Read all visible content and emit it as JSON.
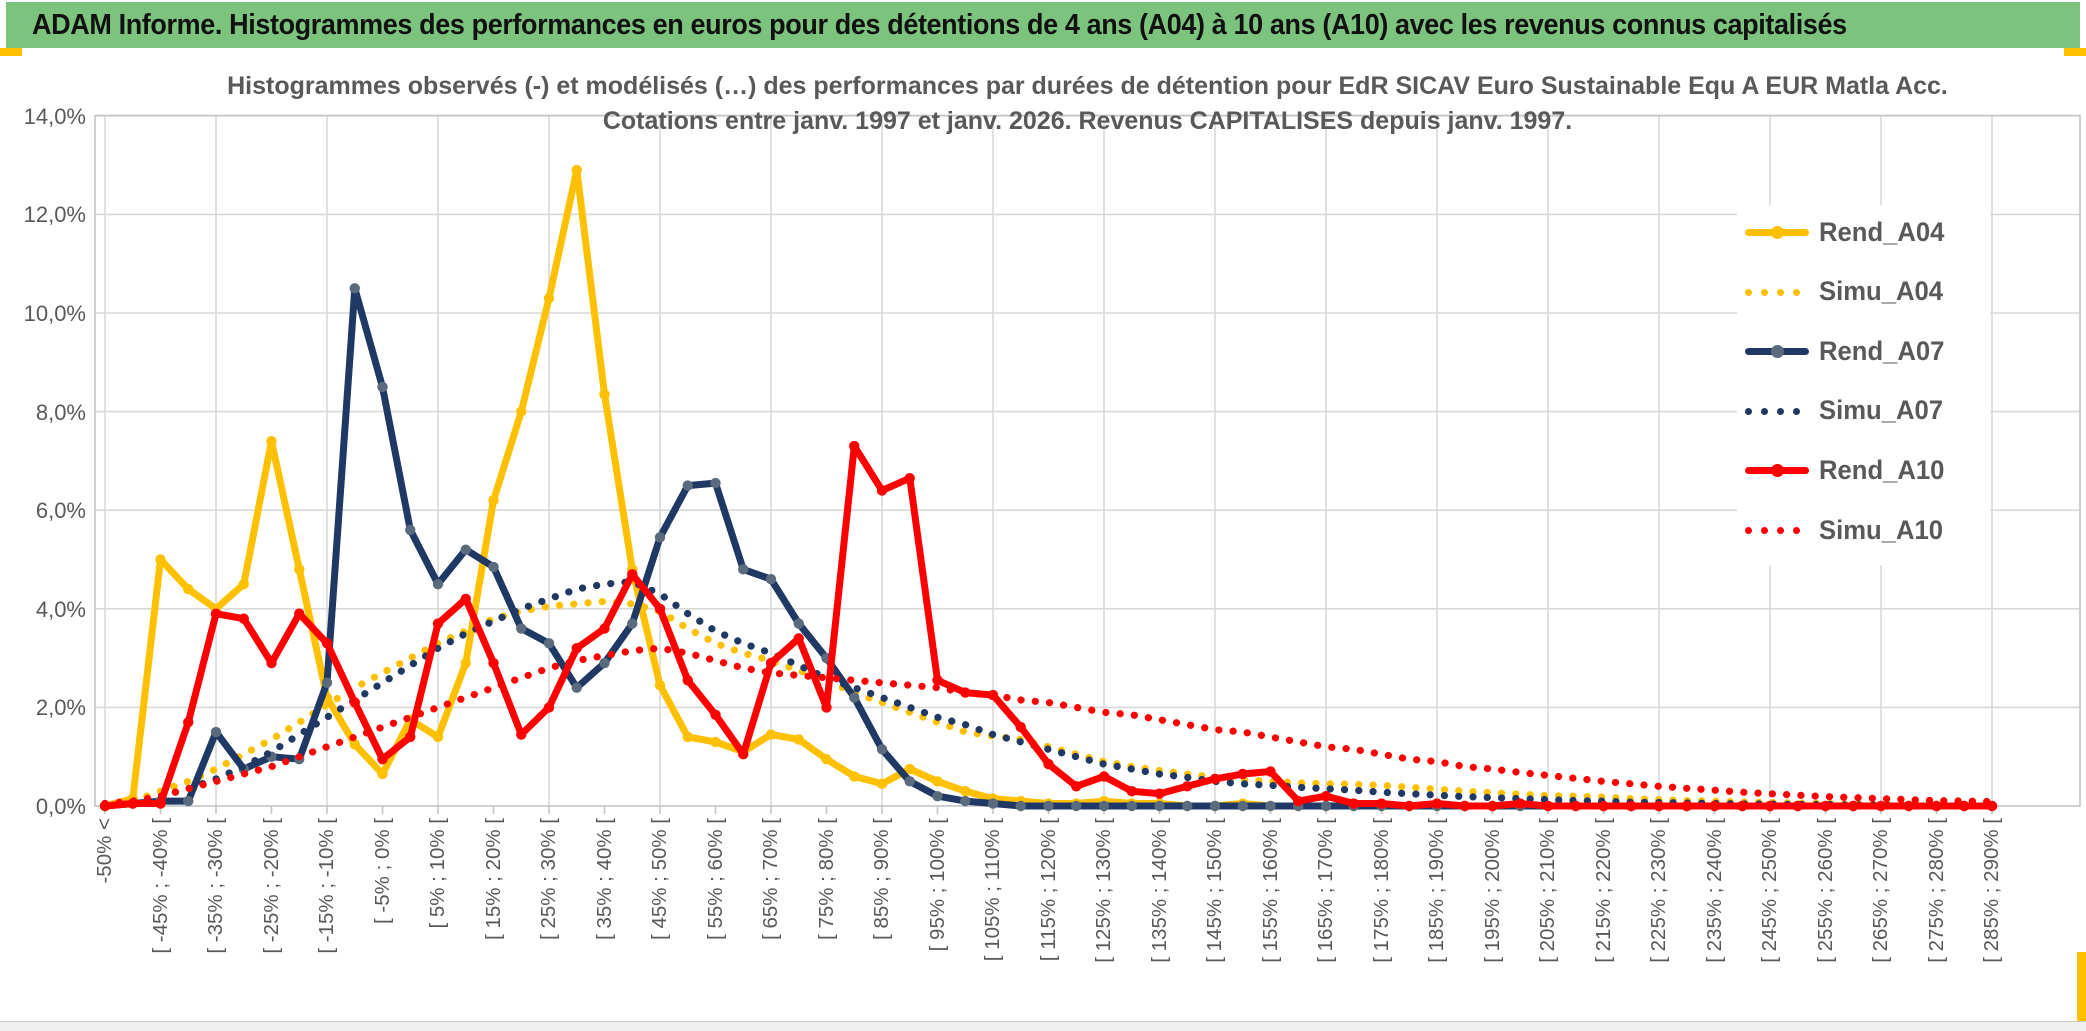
{
  "window": {
    "title": "ADAM Informe. Histogrammes des performances en euros pour des détentions de 4 ans (A04) à 10 ans (A10) avec les revenus connus capitalisés"
  },
  "theme": {
    "header_green": "#7cc47d",
    "accent_gold": "#FFC000",
    "text_gray": "#595959",
    "gridline": "#d9d9d9",
    "plot_border": "#c4c4c4"
  },
  "chart_data": {
    "type": "line",
    "title": "Histogrammes observés (-) et modélisés (…) des performances par durées de détention pour EdR SICAV Euro Sustainable Equ A EUR Matla Acc.",
    "subtitle": "Cotations entre janv. 1997 et janv. 2026. Revenus CAPITALISES depuis janv. 1997.",
    "ylim": [
      0,
      14
    ],
    "y_tick_step": 2,
    "y_tick_labels": [
      "14,0%",
      "12,0%",
      "10,0%",
      "8,0%",
      "6,0%",
      "4,0%",
      "2,0%",
      "0,0%"
    ],
    "n_bins": 69,
    "bin_width_pct": 5,
    "x_tick_every_bins": 2,
    "x_tick_labels": [
      "-50% <",
      "[ -45% ; -40% [",
      "[ -35% ; -30% [",
      "[ -25% ; -20% [",
      "[ -15% ; -10% [",
      "[ -5% ; 0% [",
      "[ 5% ; 10% [",
      "[ 15% ; 20% [",
      "[ 25% ; 30% [",
      "[ 35% ; 40% [",
      "[ 45% ; 50% [",
      "[ 55% ; 60% [",
      "[ 65% ; 70% [",
      "[ 75% ; 80% [",
      "[ 85% ; 90% [",
      "[ 95% ; 100% [",
      "[ 105% ; 110% [",
      "[ 115% ; 120% [",
      "[ 125% ; 130% [",
      "[ 135% ; 140% [",
      "[ 145% ; 150% [",
      "[ 155% ; 160% [",
      "[ 165% ; 170% [",
      "[ 175% ; 180% [",
      "[ 185% ; 190% [",
      "[ 195% ; 200% [",
      "[ 205% ; 210% [",
      "[ 215% ; 220% [",
      "[ 225% ; 230% [",
      "[ 235% ; 240% [",
      "[ 245% ; 250% [",
      "[ 255% ; 260% [",
      "[ 265% ; 270% [",
      "[ 275% ; 280% [",
      "[ 285% ; 290% ["
    ],
    "legend_position": "right",
    "series": [
      {
        "name": "Rend_A04",
        "style": "solid",
        "color": "#FFC000",
        "marker_color": "#FFC000",
        "values": [
          0,
          0.15,
          5,
          4.4,
          4,
          4.5,
          7.4,
          4.8,
          2.2,
          1.25,
          0.65,
          1.75,
          1.4,
          2.9,
          6.2,
          8,
          10.3,
          12.9,
          8.35,
          4.8,
          2.45,
          1.4,
          1.3,
          1.1,
          1.45,
          1.35,
          0.95,
          0.6,
          0.45,
          0.75,
          0.5,
          0.3,
          0.15,
          0.1,
          0.05,
          0.05,
          0.1,
          0.05,
          0.05,
          0,
          0,
          0.05,
          0,
          0,
          0,
          0,
          0,
          0,
          0,
          0,
          0,
          0,
          0,
          0,
          0,
          0,
          0,
          0,
          0,
          0,
          0,
          0,
          0,
          0,
          0,
          0,
          0,
          0,
          0
        ]
      },
      {
        "name": "Simu_A04",
        "style": "dotted",
        "color": "#FFC000",
        "values": [
          0.05,
          0.1,
          0.3,
          0.5,
          0.75,
          1.05,
          1.35,
          1.7,
          2.05,
          2.4,
          2.7,
          3,
          3.3,
          3.55,
          3.8,
          3.95,
          4.05,
          4.1,
          4.15,
          4.1,
          3.95,
          3.6,
          3.3,
          3.1,
          2.95,
          2.75,
          2.55,
          2.3,
          2.1,
          1.9,
          1.7,
          1.5,
          1.42,
          1.35,
          1.2,
          1.05,
          0.9,
          0.8,
          0.72,
          0.65,
          0.58,
          0.53,
          0.5,
          0.47,
          0.45,
          0.44,
          0.42,
          0.38,
          0.34,
          0.3,
          0.27,
          0.24,
          0.21,
          0.2,
          0.18,
          0.15,
          0.13,
          0.11,
          0.1,
          0.08,
          0.07,
          0.06,
          0.05,
          0.04,
          0.03,
          0.03,
          0.02,
          0.02,
          0.02
        ]
      },
      {
        "name": "Rend_A07",
        "style": "solid",
        "color": "#1F3864",
        "marker_color": "#5b6b7e",
        "values": [
          0,
          0.05,
          0.1,
          0.1,
          1.5,
          0.75,
          1,
          0.95,
          2.5,
          10.5,
          8.5,
          5.6,
          4.5,
          5.2,
          4.85,
          3.6,
          3.3,
          2.4,
          2.9,
          3.7,
          5.45,
          6.5,
          6.55,
          4.8,
          4.6,
          3.7,
          3,
          2.2,
          1.15,
          0.5,
          0.2,
          0.1,
          0.05,
          0,
          0,
          0,
          0,
          0,
          0,
          0,
          0,
          0,
          0,
          0,
          0,
          0,
          0,
          0,
          0,
          0,
          0,
          0,
          0,
          0,
          0,
          0,
          0,
          0,
          0,
          0,
          0,
          0,
          0,
          0,
          0,
          0,
          0,
          0,
          0
        ]
      },
      {
        "name": "Simu_A07",
        "style": "dotted",
        "color": "#1F3864",
        "values": [
          0.05,
          0.08,
          0.2,
          0.35,
          0.55,
          0.8,
          1.1,
          1.45,
          1.8,
          2.15,
          2.5,
          2.85,
          3.2,
          3.5,
          3.75,
          4,
          4.2,
          4.4,
          4.5,
          4.55,
          4.3,
          3.9,
          3.55,
          3.3,
          3.1,
          2.85,
          2.6,
          2.4,
          2.2,
          2,
          1.8,
          1.65,
          1.45,
          1.3,
          1.15,
          1,
          0.85,
          0.75,
          0.65,
          0.58,
          0.5,
          0.45,
          0.42,
          0.38,
          0.35,
          0.32,
          0.28,
          0.25,
          0.22,
          0.19,
          0.17,
          0.15,
          0.13,
          0.11,
          0.1,
          0.08,
          0.07,
          0.06,
          0.05,
          0.04,
          0.04,
          0.03,
          0.03,
          0.02,
          0.02,
          0.01,
          0.01,
          0.01,
          0.01
        ]
      },
      {
        "name": "Rend_A10",
        "style": "solid",
        "color": "#FF0000",
        "marker_color": "#FF0000",
        "values": [
          0,
          0.05,
          0.05,
          1.7,
          3.9,
          3.8,
          2.9,
          3.9,
          3.3,
          2.1,
          0.95,
          1.4,
          3.7,
          4.2,
          2.9,
          1.45,
          2,
          3.2,
          3.6,
          4.7,
          4,
          2.55,
          1.85,
          1.05,
          2.9,
          3.4,
          2,
          7.3,
          6.4,
          6.65,
          2.55,
          2.3,
          2.25,
          1.6,
          0.85,
          0.4,
          0.6,
          0.3,
          0.25,
          0.4,
          0.55,
          0.65,
          0.7,
          0.1,
          0.2,
          0.05,
          0.05,
          0,
          0.05,
          0,
          0,
          0.05,
          0,
          0,
          0,
          0,
          0,
          0,
          0,
          0,
          0,
          0,
          0,
          0,
          0,
          0,
          0,
          0,
          0
        ]
      },
      {
        "name": "Simu_A10",
        "style": "dotted",
        "color": "#FF0000",
        "values": [
          0.05,
          0.1,
          0.2,
          0.35,
          0.5,
          0.65,
          0.8,
          1,
          1.2,
          1.4,
          1.6,
          1.8,
          2,
          2.2,
          2.4,
          2.6,
          2.8,
          2.95,
          3.05,
          3.15,
          3.2,
          3.1,
          2.95,
          2.8,
          2.7,
          2.65,
          2.6,
          2.55,
          2.5,
          2.45,
          2.4,
          2.3,
          2.25,
          2.15,
          2.1,
          2,
          1.9,
          1.85,
          1.75,
          1.65,
          1.55,
          1.5,
          1.4,
          1.3,
          1.2,
          1.15,
          1.05,
          0.95,
          0.9,
          0.8,
          0.75,
          0.68,
          0.62,
          0.56,
          0.5,
          0.45,
          0.4,
          0.36,
          0.32,
          0.28,
          0.25,
          0.22,
          0.19,
          0.17,
          0.15,
          0.13,
          0.11,
          0.1,
          0.09
        ]
      }
    ]
  }
}
